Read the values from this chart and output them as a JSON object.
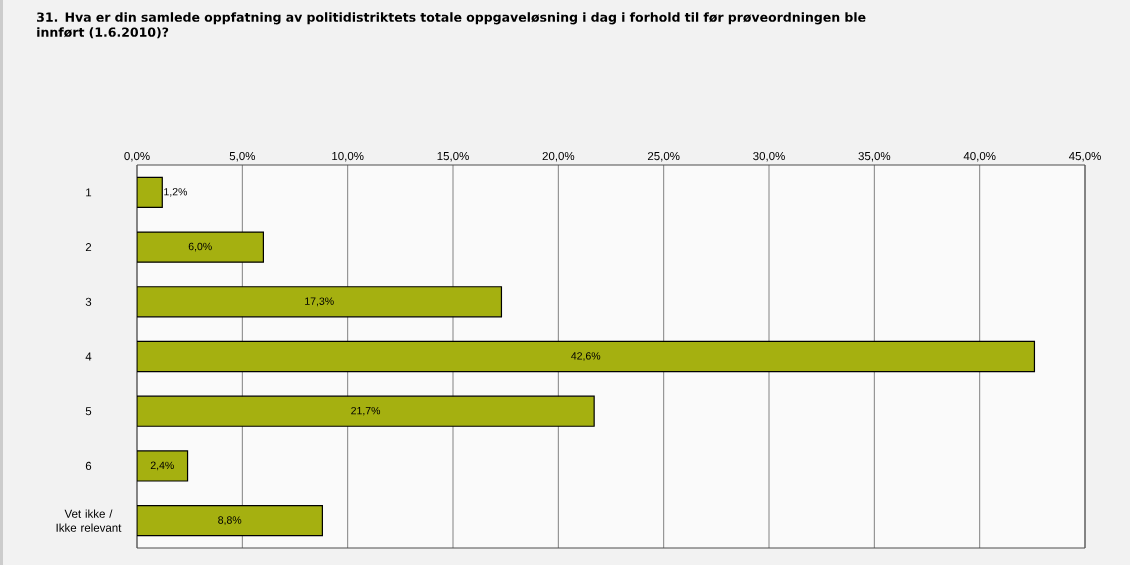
{
  "chart_data": {
    "type": "bar",
    "orientation": "horizontal",
    "title": "31. Hva er din samlede oppfatning av politidistriktets totale oppgaveløsning i dag i forhold til før prøveordningen ble innført (1.6.2010)?",
    "categories": [
      "1",
      "2",
      "3",
      "4",
      "5",
      "6",
      "Vet ikke / Ikke relevant"
    ],
    "values": [
      1.2,
      6.0,
      17.3,
      42.6,
      21.7,
      2.4,
      8.8
    ],
    "value_labels": [
      "1,2%",
      "6,0%",
      "17,3%",
      "42,6%",
      "21,7%",
      "2,4%",
      "8,8%"
    ],
    "color": "#a5b010",
    "xlim": [
      0,
      45
    ],
    "xticks": [
      {
        "value": 0,
        "label": "0,0%"
      },
      {
        "value": 5,
        "label": "5,0%"
      },
      {
        "value": 10,
        "label": "10,0%"
      },
      {
        "value": 15,
        "label": "15,0%"
      },
      {
        "value": 20,
        "label": "20,0%"
      },
      {
        "value": 25,
        "label": "25,0%"
      },
      {
        "value": 30,
        "label": "30,0%"
      },
      {
        "value": 35,
        "label": "35,0%"
      },
      {
        "value": 40,
        "label": "40,0%"
      },
      {
        "value": 45,
        "label": "45,0%"
      }
    ],
    "grid": "x"
  }
}
